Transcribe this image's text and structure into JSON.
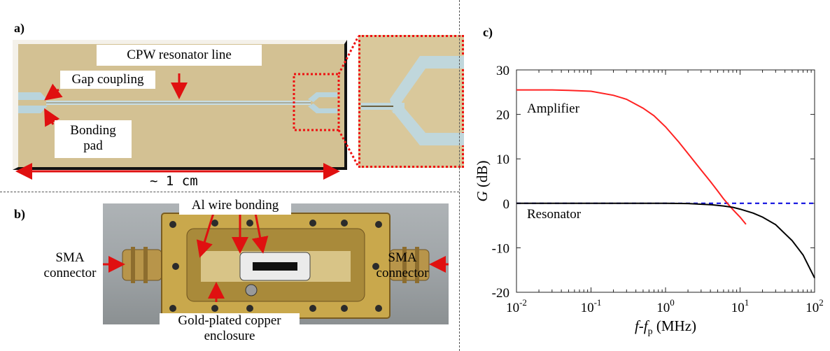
{
  "panel_a": {
    "label": "a)",
    "cpw_label": "CPW resonator line",
    "gap_label": "Gap coupling",
    "pad_label_1": "Bonding",
    "pad_label_2": "pad",
    "scale_label": "~ 1 cm"
  },
  "panel_b": {
    "label": "b)",
    "wire_label": "Al wire bonding",
    "sma_left_1": "SMA",
    "sma_left_2": "connector",
    "sma_right_1": "SMA",
    "sma_right_2": "connector",
    "enclosure_1": "Gold-plated copper",
    "enclosure_2": "enclosure"
  },
  "panel_c": {
    "label": "c)"
  },
  "colors": {
    "amplifier": "#ff2222",
    "resonator": "#000000",
    "unity_line": "#0000dd",
    "arrow": "#e01010",
    "chip_gold": "#d3c193",
    "enclosure_gold": "#c9a84c"
  },
  "chart_data": {
    "type": "line",
    "xscale": "log",
    "xlim": [
      0.01,
      100
    ],
    "ylim": [
      -20,
      30
    ],
    "xlabel": "f-f",
    "xlabel_sub": "p",
    "xlabel_unit": " (MHz)",
    "ylabel": "G",
    "ylabel_unit": " (dB)",
    "xticks": [
      {
        "value": 0.01,
        "base": "10",
        "exp": "-2"
      },
      {
        "value": 0.1,
        "base": "10",
        "exp": "-1"
      },
      {
        "value": 1,
        "base": "10",
        "exp": "0"
      },
      {
        "value": 10,
        "base": "10",
        "exp": "1"
      },
      {
        "value": 100,
        "base": "10",
        "exp": "2"
      }
    ],
    "yticks": [
      30,
      20,
      10,
      0,
      -10,
      -20
    ],
    "ytick_labels": [
      "30",
      "20",
      "10",
      "0",
      "-10",
      "-20"
    ],
    "series": [
      {
        "name": "Amplifier",
        "x": [
          0.01,
          0.03,
          0.05,
          0.1,
          0.2,
          0.3,
          0.5,
          0.7,
          1,
          1.5,
          2,
          3,
          4,
          5,
          6,
          7,
          8,
          10,
          12
        ],
        "y": [
          25.5,
          25.5,
          25.4,
          25.2,
          24.3,
          23.4,
          21.4,
          19.7,
          17.2,
          13.8,
          11.2,
          7.5,
          4.9,
          2.8,
          1.0,
          -0.3,
          -1.4,
          -3.1,
          -4.7
        ]
      },
      {
        "name": "Resonator",
        "x": [
          0.01,
          0.1,
          1,
          2,
          4,
          6,
          8,
          10,
          15,
          20,
          30,
          50,
          70,
          100
        ],
        "y": [
          0,
          0,
          0,
          -0.05,
          -0.3,
          -0.6,
          -0.9,
          -1.3,
          -2.2,
          -3.1,
          -4.8,
          -8.4,
          -11.6,
          -16.8
        ]
      }
    ],
    "reference_line": {
      "y": 0,
      "style": "dashed"
    }
  }
}
